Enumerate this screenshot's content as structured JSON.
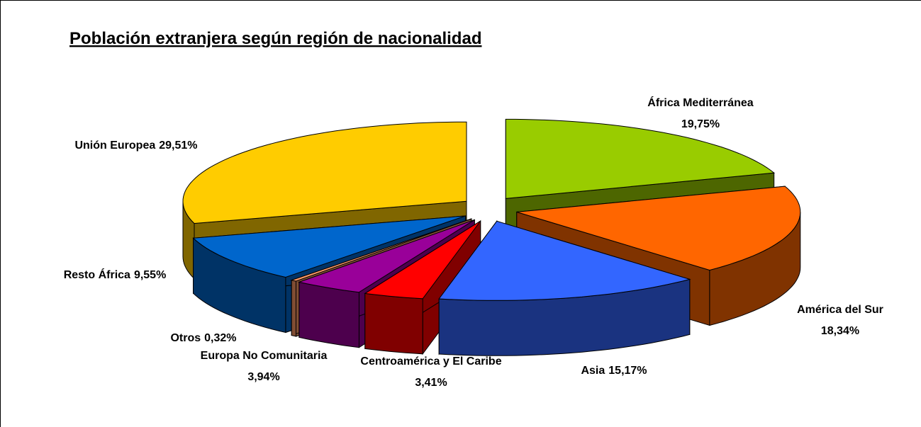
{
  "chart_data": {
    "type": "pie",
    "title": "Población extranjera según región de nacionalidad",
    "categories": [
      "África Mediterránea",
      "América del Sur",
      "Asia",
      "Centroamérica y El Caribe",
      "Europa No Comunitaria",
      "Otros",
      "Resto África",
      "Unión Europea"
    ],
    "values": [
      19.75,
      18.34,
      15.17,
      3.41,
      3.94,
      0.32,
      9.55,
      29.51
    ],
    "value_labels": [
      "19,75%",
      "18,34%",
      "15,17%",
      "3,41%",
      "3,94%",
      "0,32%",
      "9,55%",
      "29,51%"
    ],
    "colors": [
      "#99cc00",
      "#ff6600",
      "#3366ff",
      "#ff0000",
      "#990099",
      "#ff9966",
      "#0066cc",
      "#ffcc00"
    ]
  }
}
